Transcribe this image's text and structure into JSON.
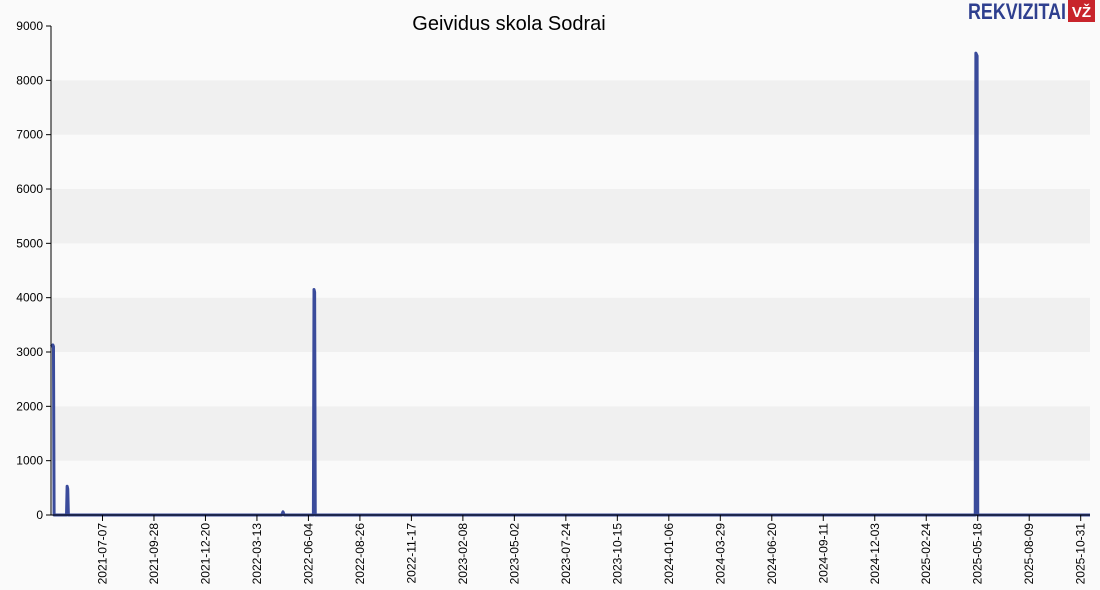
{
  "logo": {
    "wordmark": "REKVIZITAI",
    "badge": "VŽ",
    "wordmark_color": "#2e3f8f",
    "badge_color": "#c8242b"
  },
  "chart_data": {
    "type": "line",
    "title": "Geividus skola Sodrai",
    "xlabel": "",
    "ylabel": "",
    "ylim": [
      0,
      9000
    ],
    "yticks": [
      0,
      1000,
      2000,
      3000,
      4000,
      5000,
      6000,
      7000,
      8000,
      9000
    ],
    "xlim": [
      "2021-04-15",
      "2025-11-15"
    ],
    "xticks": [
      "2021-07-07",
      "2021-09-28",
      "2021-12-20",
      "2022-03-13",
      "2022-06-04",
      "2022-08-26",
      "2022-11-17",
      "2023-02-08",
      "2023-05-02",
      "2023-07-24",
      "2023-10-15",
      "2024-01-06",
      "2024-03-29",
      "2024-06-20",
      "2024-09-11",
      "2024-12-03",
      "2025-02-24",
      "2025-05-18",
      "2025-08-09",
      "2025-10-31"
    ],
    "grid": "horizontal bands",
    "legend": "none",
    "line_color": "#3a4b9b",
    "series": [
      {
        "x": [
          "2021-04-15",
          "2021-04-18",
          "2021-04-19",
          "2021-04-20",
          "2021-05-10",
          "2021-05-11",
          "2021-05-12",
          "2021-05-13",
          "2022-04-22",
          "2022-04-24",
          "2022-04-26",
          "2022-06-12",
          "2022-06-13",
          "2022-06-14",
          "2022-06-15",
          "2025-05-14",
          "2025-05-15",
          "2025-05-17",
          "2025-05-18",
          "2025-11-15"
        ],
        "values": [
          3100,
          3130,
          3100,
          0,
          0,
          530,
          480,
          0,
          0,
          60,
          0,
          0,
          4150,
          4100,
          0,
          0,
          8500,
          8450,
          0,
          0
        ]
      }
    ]
  }
}
